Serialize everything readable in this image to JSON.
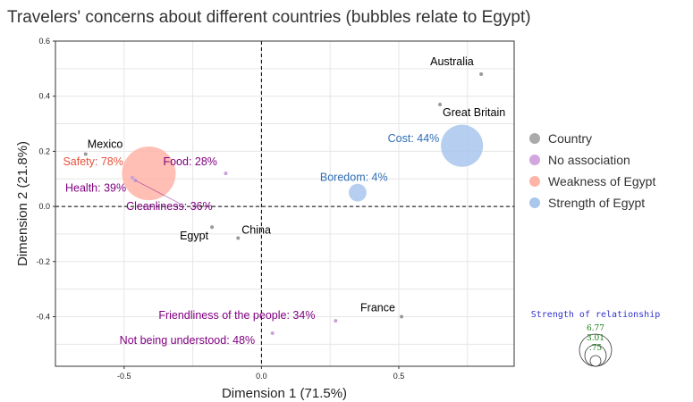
{
  "chart_data": {
    "type": "scatter",
    "title": "Travelers' concerns about different countries (bubbles relate to Egypt)",
    "xlabel": "Dimension 1 (71.5%)",
    "ylabel": "Dimension 2 (21.8%)",
    "xlim": [
      -0.75,
      0.92
    ],
    "ylim": [
      -0.58,
      0.6
    ],
    "x_ticks": [
      {
        "v": -0.5,
        "label": "-0.5"
      },
      {
        "v": 0,
        "label": "0.0"
      },
      {
        "v": 0.5,
        "label": "0.5"
      }
    ],
    "y_ticks": [
      {
        "v": 0.6,
        "label": "0.6"
      },
      {
        "v": 0.4,
        "label": "0.4"
      },
      {
        "v": 0.2,
        "label": "0.2"
      },
      {
        "v": 0,
        "label": "0.0"
      },
      {
        "v": -0.2,
        "label": "-0.2"
      },
      {
        "v": -0.4,
        "label": "-0.4"
      }
    ],
    "grid": true,
    "reference_lines": {
      "x": 0,
      "y": 0,
      "style": "dashed"
    },
    "colors": {
      "country": "#999999",
      "no_association": "#800080",
      "weakness": "#e8513a",
      "strength": "#2f6eb5",
      "weakness_bubble": "#ffb4a8",
      "strength_bubble": "#a9c6ec",
      "no_association_point": "#c9a0d9"
    },
    "points": [
      {
        "group": "country",
        "label": "Australia",
        "x": 0.8,
        "y": 0.48
      },
      {
        "group": "country",
        "label": "Great Britain",
        "x": 0.65,
        "y": 0.37
      },
      {
        "group": "country",
        "label": "Mexico",
        "x": -0.64,
        "y": 0.19
      },
      {
        "group": "country",
        "label": "Egypt",
        "x": -0.18,
        "y": -0.075
      },
      {
        "group": "country",
        "label": "China",
        "x": -0.085,
        "y": -0.115
      },
      {
        "group": "country",
        "label": "France",
        "x": 0.51,
        "y": -0.4
      },
      {
        "group": "no_association",
        "label": "Food: 28%",
        "x": -0.13,
        "y": 0.12
      },
      {
        "group": "no_association",
        "label": "Health: 39%",
        "x": -0.47,
        "y": 0.105
      },
      {
        "group": "no_association",
        "label": "Cleanliness: 36%",
        "x": -0.46,
        "y": 0.095
      },
      {
        "group": "no_association",
        "label": "Friendliness of the people: 34%",
        "x": 0.27,
        "y": -0.415
      },
      {
        "group": "no_association",
        "label": "Not being understood: 48%",
        "x": 0.04,
        "y": -0.46
      },
      {
        "group": "weakness",
        "label": "Safety: 78%",
        "x": -0.41,
        "y": 0.12,
        "size": 78
      },
      {
        "group": "strength",
        "label": "Cost: 44%",
        "x": 0.73,
        "y": 0.22,
        "size": 44
      },
      {
        "group": "strength",
        "label": "Boredom: 4%",
        "x": 0.35,
        "y": 0.05,
        "size": 4
      }
    ],
    "legend": {
      "placement": "right",
      "entries": [
        {
          "group": "country",
          "label": "Country"
        },
        {
          "group": "no_association",
          "label": "No association"
        },
        {
          "group": "weakness",
          "label": "Weakness of Egypt"
        },
        {
          "group": "strength",
          "label": "Strength of Egypt"
        }
      ]
    },
    "size_legend": {
      "title": "Strength of relationship",
      "values": [
        "6.77",
        "3.01",
        ".75"
      ]
    }
  }
}
